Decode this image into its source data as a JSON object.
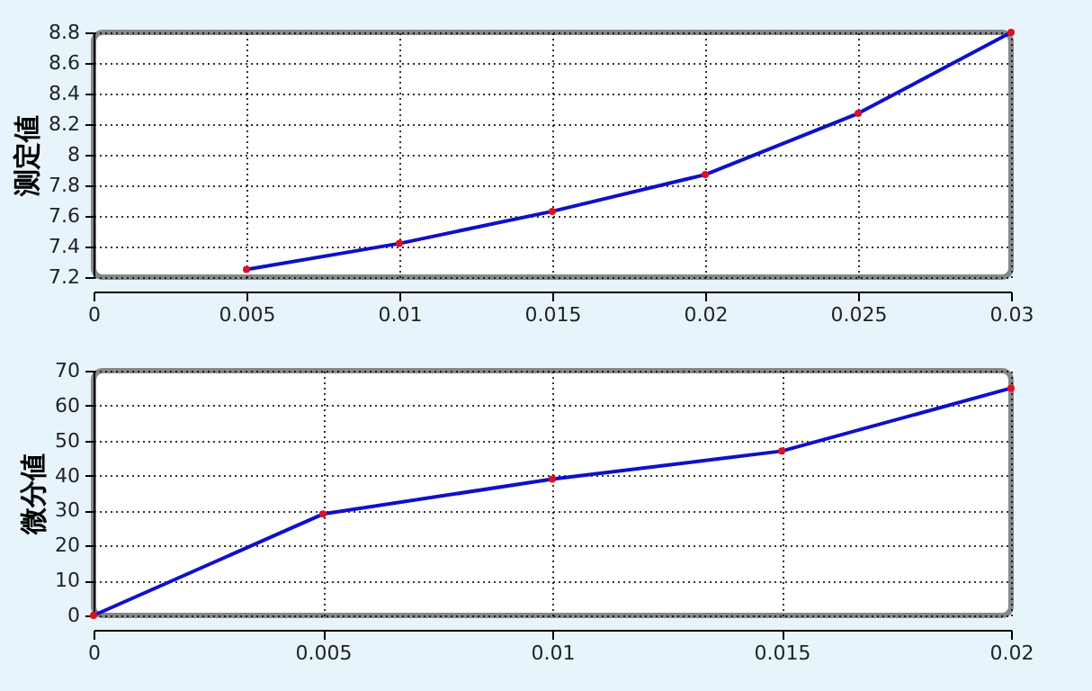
{
  "chart_data": [
    {
      "type": "line",
      "ylabel": "测定値",
      "x": [
        0.005,
        0.01,
        0.015,
        0.02,
        0.025,
        0.03
      ],
      "series": [
        {
          "color": "#1010c8",
          "values": [
            7.25,
            7.42,
            7.63,
            7.87,
            8.27,
            8.8
          ]
        }
      ],
      "xlim": [
        0,
        0.03
      ],
      "xticks": [
        0,
        0.005,
        0.01,
        0.015,
        0.02,
        0.025,
        0.03
      ],
      "ylim": [
        7.2,
        8.8
      ],
      "yticks": [
        7.2,
        7.4,
        7.6,
        7.8,
        8,
        8.2,
        8.4,
        8.6,
        8.8
      ],
      "grid": true,
      "marker": "circle",
      "line_style": "solid"
    },
    {
      "type": "line",
      "ylabel": "微分値",
      "x": [
        0,
        0.005,
        0.01,
        0.015,
        0.02
      ],
      "series": [
        {
          "color": "#1010c8",
          "values": [
            0,
            29,
            39,
            47,
            65
          ]
        }
      ],
      "xlim": [
        0,
        0.02
      ],
      "xticks": [
        0,
        0.005,
        0.01,
        0.015,
        0.02
      ],
      "ylim": [
        0,
        70
      ],
      "yticks": [
        0,
        10,
        20,
        30,
        40,
        50,
        60,
        70
      ],
      "grid": true,
      "marker": "circle",
      "line_style": "solid"
    }
  ]
}
